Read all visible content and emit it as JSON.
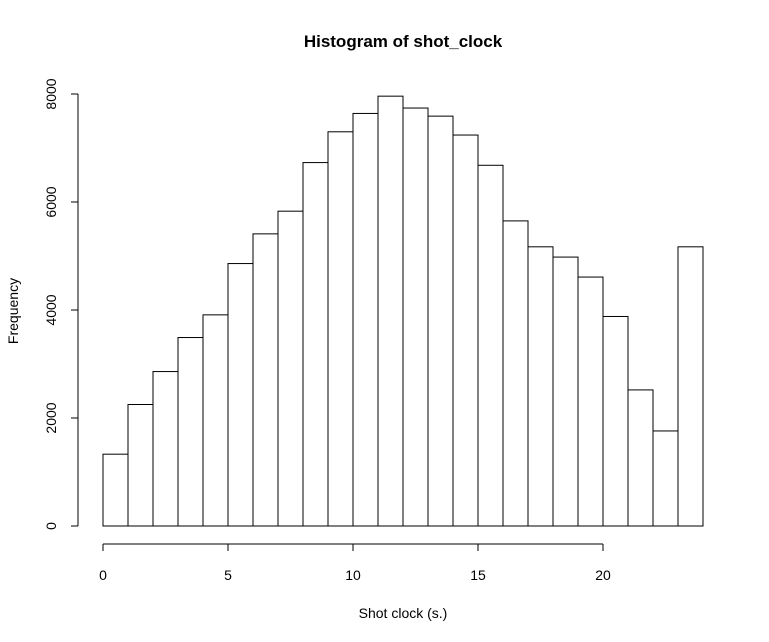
{
  "chart_data": {
    "type": "bar",
    "title": "Histogram of shot_clock",
    "xlabel": "Shot clock (s.)",
    "ylabel": "Frequency",
    "bin_width": 1,
    "bins_start": [
      0,
      1,
      2,
      3,
      4,
      5,
      6,
      7,
      8,
      9,
      10,
      11,
      12,
      13,
      14,
      15,
      16,
      17,
      18,
      19,
      20,
      21,
      22,
      23
    ],
    "values": [
      1330,
      2250,
      2860,
      3490,
      3910,
      4860,
      5410,
      5830,
      6730,
      7300,
      7640,
      7960,
      7740,
      7590,
      7240,
      6680,
      5650,
      5170,
      4980,
      4610,
      3880,
      2520,
      1760,
      5170
    ],
    "xlim": [
      0,
      24
    ],
    "ylim": [
      0,
      8000
    ],
    "x_ticks": [
      0,
      5,
      10,
      15,
      20
    ],
    "y_ticks": [
      0,
      2000,
      4000,
      6000,
      8000
    ],
    "grid": false,
    "bar_color": "#ffffff",
    "edge_color": "#000000"
  }
}
